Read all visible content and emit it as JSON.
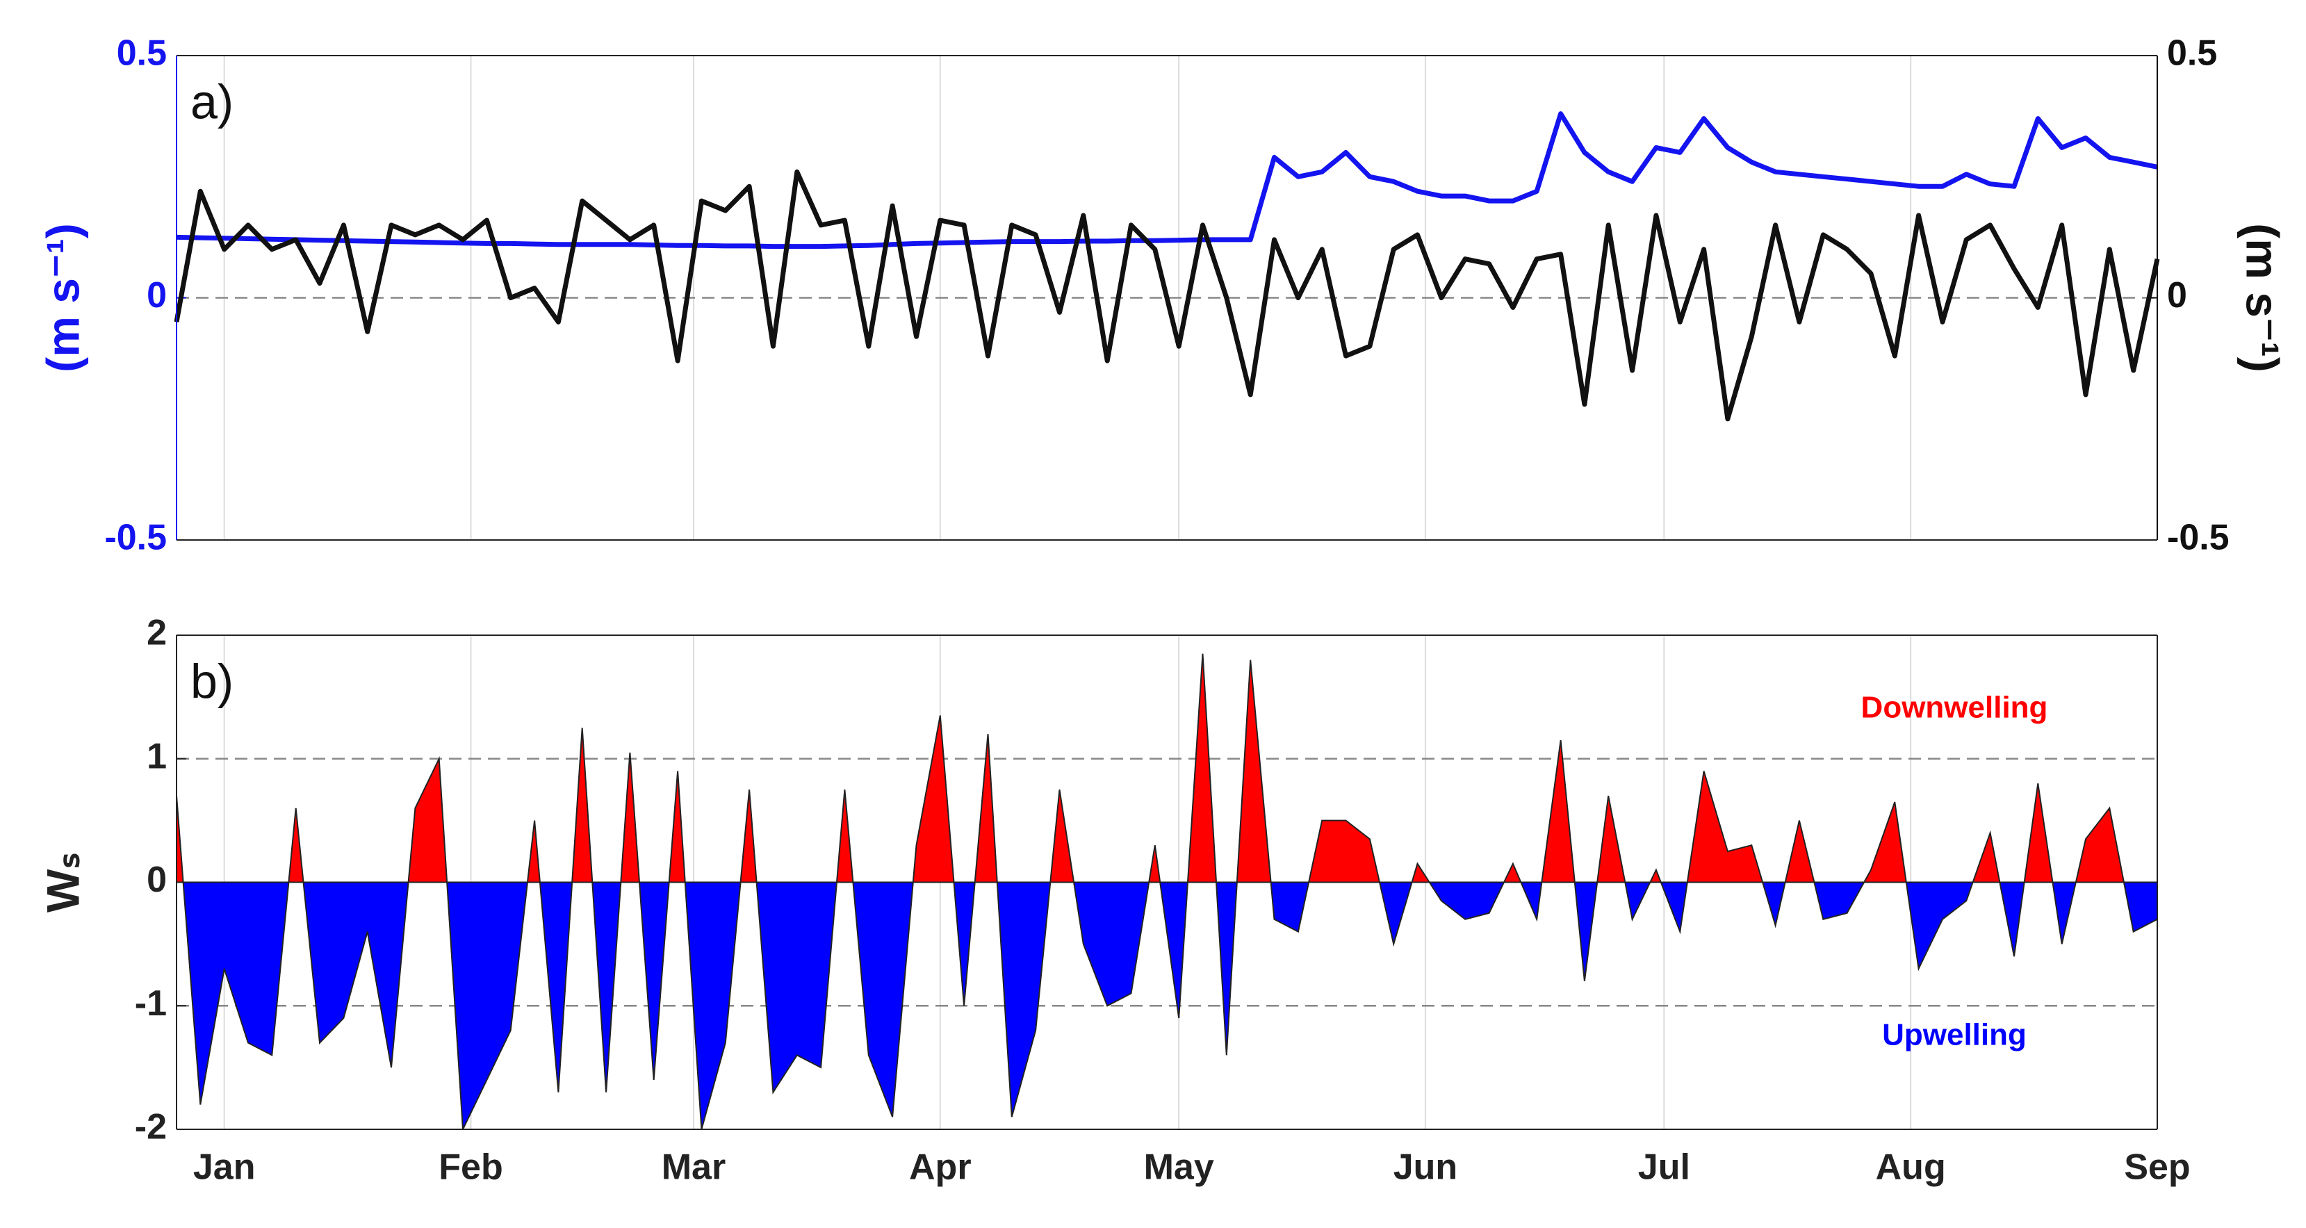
{
  "chart_data": [
    {
      "type": "line",
      "annotation": "a)",
      "y_label": "(m s⁻¹)",
      "y2_label": "(m s⁻¹)",
      "xlim": [
        -6,
        243
      ],
      "xticks": [
        0,
        31,
        59,
        90,
        120,
        151,
        181,
        212,
        243
      ],
      "ylim": [
        -0.5,
        0.5
      ],
      "yticks": [
        -0.5,
        0,
        0.5
      ],
      "y2lim": [
        -0.5,
        0.5
      ],
      "y2ticks": [
        -0.5,
        0,
        0.5
      ],
      "hlines": [
        0
      ],
      "grid": true,
      "x": [
        -6,
        -3,
        0,
        3,
        6,
        9,
        12,
        15,
        18,
        21,
        24,
        27,
        30,
        33,
        36,
        39,
        42,
        45,
        48,
        51,
        54,
        57,
        60,
        63,
        66,
        69,
        72,
        75,
        78,
        81,
        84,
        87,
        90,
        93,
        96,
        99,
        102,
        105,
        108,
        111,
        114,
        117,
        120,
        123,
        126,
        129,
        132,
        135,
        138,
        141,
        144,
        147,
        150,
        153,
        156,
        159,
        162,
        165,
        168,
        171,
        174,
        177,
        180,
        183,
        186,
        189,
        192,
        195,
        198,
        201,
        204,
        207,
        210,
        213,
        216,
        219,
        222,
        225,
        228,
        231,
        234,
        237,
        240,
        243
      ],
      "series": [
        {
          "color": "#1414f0",
          "axis": "y",
          "values": [
            0.125,
            0.124,
            0.123,
            0.122,
            0.121,
            0.12,
            0.119,
            0.118,
            0.117,
            0.116,
            0.115,
            0.114,
            0.113,
            0.112,
            0.112,
            0.111,
            0.11,
            0.11,
            0.11,
            0.11,
            0.109,
            0.108,
            0.108,
            0.107,
            0.107,
            0.106,
            0.106,
            0.106,
            0.107,
            0.108,
            0.11,
            0.112,
            0.113,
            0.114,
            0.115,
            0.116,
            0.116,
            0.116,
            0.117,
            0.117,
            0.118,
            0.118,
            0.119,
            0.12,
            0.12,
            0.12,
            0.29,
            0.25,
            0.26,
            0.3,
            0.25,
            0.24,
            0.22,
            0.21,
            0.21,
            0.2,
            0.2,
            0.22,
            0.38,
            0.3,
            0.26,
            0.24,
            0.31,
            0.3,
            0.37,
            0.31,
            0.28,
            0.26,
            0.255,
            0.25,
            0.245,
            0.24,
            0.235,
            0.23,
            0.23,
            0.255,
            0.235,
            0.23,
            0.37,
            0.31,
            0.33,
            0.29,
            0.28,
            0.27
          ]
        },
        {
          "color": "#111111",
          "axis": "y2",
          "values": [
            -0.05,
            0.22,
            0.1,
            0.15,
            0.1,
            0.12,
            0.03,
            0.15,
            -0.07,
            0.15,
            0.13,
            0.15,
            0.12,
            0.16,
            0.0,
            0.02,
            -0.05,
            0.2,
            0.16,
            0.12,
            0.15,
            -0.13,
            0.2,
            0.18,
            0.23,
            -0.1,
            0.26,
            0.15,
            0.16,
            -0.1,
            0.19,
            -0.08,
            0.16,
            0.15,
            -0.12,
            0.15,
            0.13,
            -0.03,
            0.17,
            -0.13,
            0.15,
            0.1,
            -0.1,
            0.15,
            0.0,
            -0.2,
            0.12,
            0.0,
            0.1,
            -0.12,
            -0.1,
            0.1,
            0.13,
            0.0,
            0.08,
            0.07,
            -0.02,
            0.08,
            0.09,
            -0.22,
            0.15,
            -0.15,
            0.17,
            -0.05,
            0.1,
            -0.25,
            -0.08,
            0.15,
            -0.05,
            0.13,
            0.1,
            0.05,
            -0.12,
            0.17,
            -0.05,
            0.12,
            0.15,
            0.06,
            -0.02,
            0.15,
            -0.2,
            0.1,
            -0.15,
            0.08
          ]
        }
      ]
    },
    {
      "type": "area",
      "annotation": "b)",
      "y_label": "Wₛ",
      "label_pos": "Downwelling",
      "label_neg": "Upwelling",
      "pos_color": "#ff0000",
      "neg_color": "#0000ff",
      "xlim": [
        -6,
        243
      ],
      "xticks": [
        {
          "value": 0,
          "label": "Jan"
        },
        {
          "value": 31,
          "label": "Feb"
        },
        {
          "value": 59,
          "label": "Mar"
        },
        {
          "value": 90,
          "label": "Apr"
        },
        {
          "value": 120,
          "label": "May"
        },
        {
          "value": 151,
          "label": "Jun"
        },
        {
          "value": 181,
          "label": "Jul"
        },
        {
          "value": 212,
          "label": "Aug"
        },
        {
          "value": 243,
          "label": "Sep"
        }
      ],
      "ylim": [
        -2,
        2
      ],
      "yticks": [
        -2,
        -1,
        0,
        1,
        2
      ],
      "hlines": [
        -1,
        1
      ],
      "grid": true,
      "x": [
        -6,
        -3,
        0,
        3,
        6,
        9,
        12,
        15,
        18,
        21,
        24,
        27,
        30,
        33,
        36,
        39,
        42,
        45,
        48,
        51,
        54,
        57,
        60,
        63,
        66,
        69,
        72,
        75,
        78,
        81,
        84,
        87,
        90,
        93,
        96,
        99,
        102,
        105,
        108,
        111,
        114,
        117,
        120,
        123,
        126,
        129,
        132,
        135,
        138,
        141,
        144,
        147,
        150,
        153,
        156,
        159,
        162,
        165,
        168,
        171,
        174,
        177,
        180,
        183,
        186,
        189,
        192,
        195,
        198,
        201,
        204,
        207,
        210,
        213,
        216,
        219,
        222,
        225,
        228,
        231,
        234,
        237,
        240,
        243
      ],
      "values": [
        0.7,
        -1.8,
        -0.7,
        -1.3,
        -1.4,
        0.6,
        -1.3,
        -1.1,
        -0.4,
        -1.5,
        0.6,
        1.0,
        -2.0,
        -1.6,
        -1.2,
        0.5,
        -1.7,
        1.25,
        -1.7,
        1.05,
        -1.6,
        0.9,
        -2.0,
        -1.3,
        0.75,
        -1.7,
        -1.4,
        -1.5,
        0.75,
        -1.4,
        -1.9,
        0.3,
        1.35,
        -1.0,
        1.2,
        -1.9,
        -1.2,
        0.75,
        -0.5,
        -1.0,
        -0.9,
        0.3,
        -1.1,
        1.85,
        -1.4,
        1.8,
        -0.3,
        -0.4,
        0.5,
        0.5,
        0.35,
        -0.5,
        0.15,
        -0.15,
        -0.3,
        -0.25,
        0.15,
        -0.3,
        1.15,
        -0.8,
        0.7,
        -0.3,
        0.1,
        -0.4,
        0.9,
        0.25,
        0.3,
        -0.35,
        0.5,
        -0.3,
        -0.25,
        0.1,
        0.65,
        -0.7,
        -0.3,
        -0.15,
        0.4,
        -0.6,
        0.8,
        -0.5,
        0.35,
        0.6,
        -0.4,
        -0.3
      ]
    }
  ]
}
